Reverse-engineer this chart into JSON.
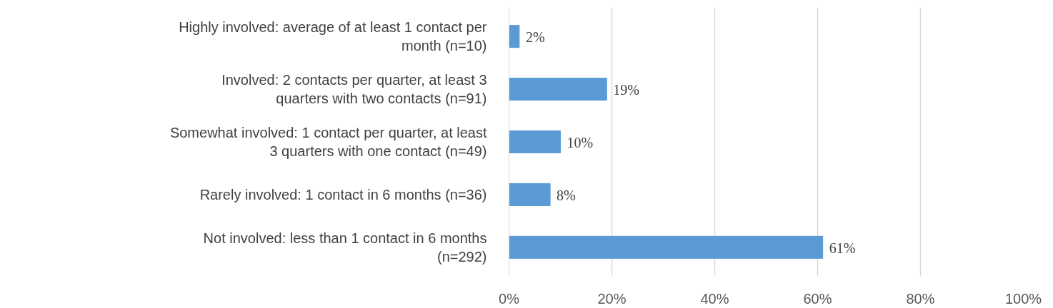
{
  "chart_data": {
    "type": "bar",
    "orientation": "horizontal",
    "categories": [
      "Highly involved: average of at least 1 contact per month (n=10)",
      "Involved: 2 contacts per quarter, at least 3 quarters with two contacts (n=91)",
      "Somewhat involved: 1 contact per quarter, at least 3 quarters with one contact (n=49)",
      "Rarely involved: 1 contact in 6 months (n=36)",
      "Not involved: less than 1 contact in 6 months (n=292)"
    ],
    "values": [
      2,
      19,
      10,
      8,
      61
    ],
    "value_labels": [
      "2%",
      "19%",
      "10%",
      "8%",
      "61%"
    ],
    "color": "#5b9bd5",
    "xlim": [
      0,
      100
    ],
    "xticks": [
      {
        "value": 0,
        "label": "0%"
      },
      {
        "value": 20,
        "label": "20%"
      },
      {
        "value": 40,
        "label": "40%"
      },
      {
        "value": 60,
        "label": "60%"
      },
      {
        "value": 80,
        "label": "80%"
      },
      {
        "value": 100,
        "label": "100%"
      }
    ],
    "grid": "x"
  }
}
